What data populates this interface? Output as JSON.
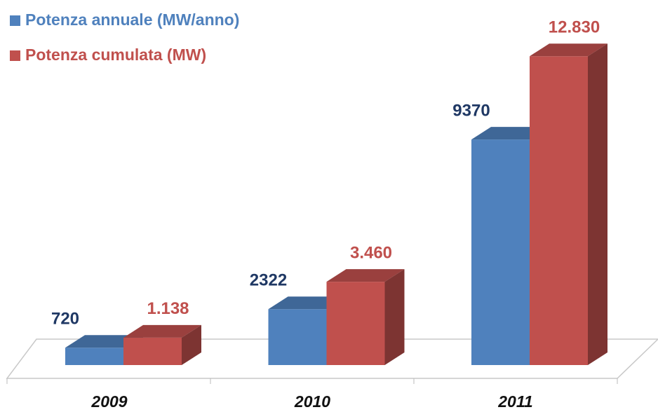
{
  "chart_data": {
    "type": "bar3d",
    "categories": [
      "2009",
      "2010",
      "2011"
    ],
    "series": [
      {
        "name": "Potenza annuale (MW/anno)",
        "color": "#4f81bd",
        "values": [
          720,
          2322,
          9370
        ]
      },
      {
        "name": "Potenza cumulata (MW)",
        "color": "#c0504d",
        "values": [
          1138,
          3460,
          12830
        ],
        "value_labels": [
          "1.138",
          "3.460",
          "12.830"
        ]
      }
    ],
    "ylim": [
      0,
      14000
    ],
    "legend": "top-left"
  }
}
